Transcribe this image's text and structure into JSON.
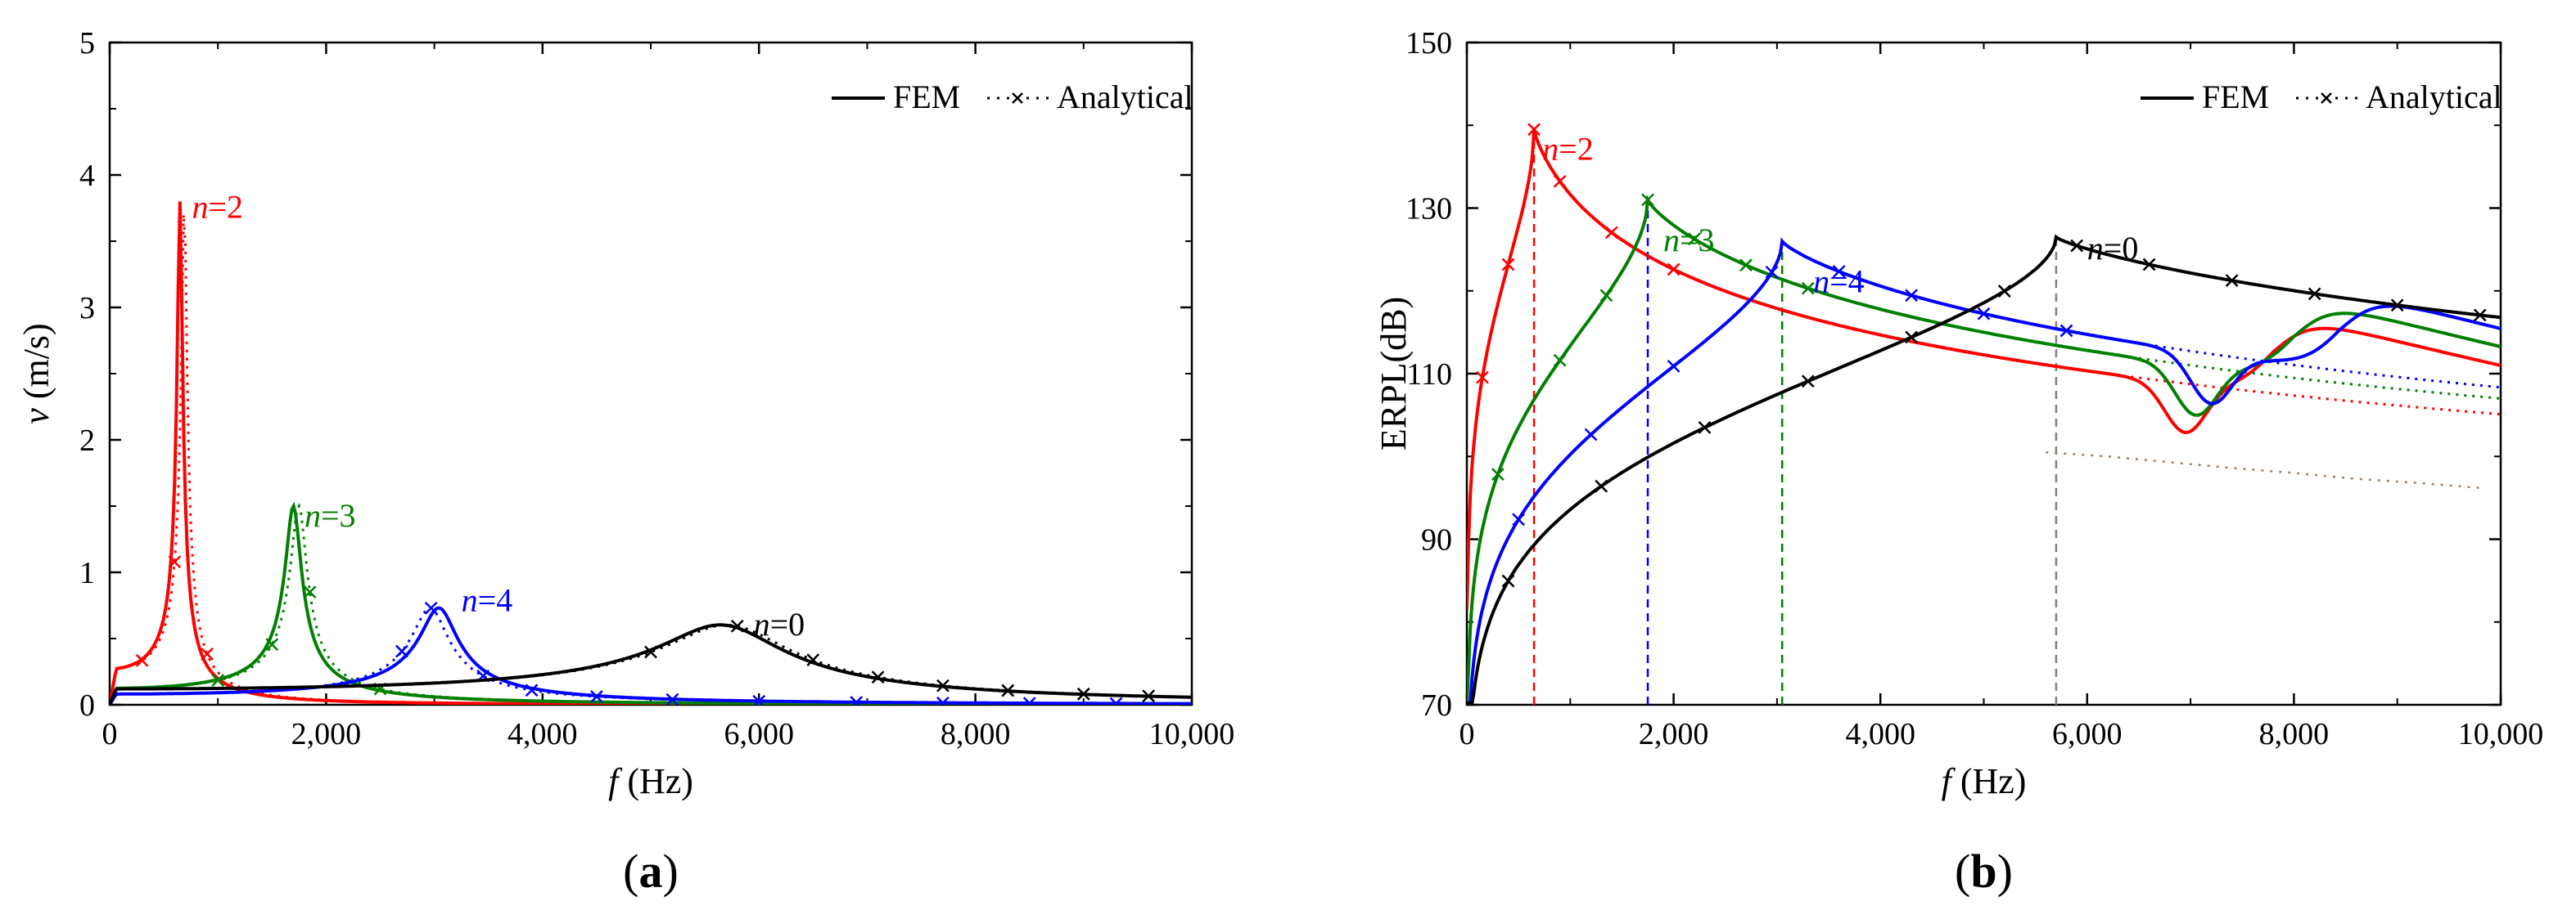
{
  "chart_data": [
    {
      "id": "a",
      "type": "line",
      "panel_label": "a",
      "xlabel_var": "f",
      "xlabel_unit": "(Hz)",
      "ylabel_var": "v",
      "ylabel_unit": " (m/s)",
      "xlim": [
        0,
        10000
      ],
      "ylim": [
        0,
        5
      ],
      "x_ticks": [
        0,
        2000,
        4000,
        6000,
        8000,
        10000
      ],
      "x_tick_labels": [
        "0",
        "2,000",
        "4,000",
        "6,000",
        "8,000",
        "10,000"
      ],
      "y_ticks": [
        0,
        1,
        2,
        3,
        4,
        5
      ],
      "y_tick_labels": [
        "0",
        "1",
        "2",
        "3",
        "4",
        "5"
      ],
      "legend": {
        "fem": "FEM",
        "analytical": "Analytical",
        "position": "top-right"
      },
      "series": [
        {
          "name": "n=2",
          "color": "#ff0000",
          "f0": 650,
          "peak": 3.8,
          "q": 14,
          "ana_shift": 40,
          "marker_x": [
            300,
            600,
            900
          ],
          "label_var": "n",
          "label_val": "=2",
          "label_at": [
            760,
            3.75
          ]
        },
        {
          "name": "n=3",
          "color": "#008000",
          "f0": 1700,
          "peak": 1.5,
          "q": 12,
          "ana_shift": 50,
          "marker_x": [
            1000,
            1500,
            1850,
            2500
          ],
          "label_var": "n",
          "label_val": "=3",
          "label_at": [
            1800,
            1.42
          ]
        },
        {
          "name": "n=4",
          "color": "#0000ff",
          "f0": 3050,
          "peak": 0.73,
          "q": 9,
          "ana_shift": -80,
          "marker_x": [
            2700,
            2970,
            3450,
            3900,
            4500,
            5200,
            6000,
            6900,
            7700,
            8500,
            9300
          ],
          "label_var": "n",
          "label_val": "=4",
          "label_at": [
            3250,
            0.78
          ]
        },
        {
          "name": "n=0",
          "color": "#000000",
          "f0": 5700,
          "peak": 0.6,
          "q": 5,
          "ana_shift": 60,
          "marker_x": [
            5000,
            5800,
            6500,
            7100,
            7700,
            8300,
            9000,
            9600
          ],
          "label_var": "n",
          "label_val": "=0",
          "label_at": [
            5950,
            0.6
          ]
        }
      ]
    },
    {
      "id": "b",
      "type": "line",
      "panel_label": "b",
      "xlabel_var": "f",
      "xlabel_unit": "(Hz)",
      "ylabel_var": "",
      "ylabel_unit": "ERPL(dB)",
      "xlim": [
        0,
        10000
      ],
      "ylim": [
        70,
        150
      ],
      "x_ticks": [
        0,
        2000,
        4000,
        6000,
        8000,
        10000
      ],
      "x_tick_labels": [
        "0",
        "2,000",
        "4,000",
        "6,000",
        "8,000",
        "10,000"
      ],
      "y_ticks": [
        70,
        90,
        110,
        130,
        150
      ],
      "y_tick_labels": [
        "70",
        "90",
        "110",
        "130",
        "150"
      ],
      "legend": {
        "fem": "FEM",
        "analytical": "Analytical",
        "position": "top-right"
      },
      "series": [
        {
          "name": "n=2",
          "color": "#ff0000",
          "f0": 650,
          "peak": 139.5,
          "marker_x": [
            150,
            400,
            650,
            900,
            1400,
            2000
          ],
          "label_var": "n",
          "label_val": "=2",
          "label_at": [
            730,
            137
          ]
        },
        {
          "name": "n=3",
          "color": "#008000",
          "f0": 1750,
          "peak": 131,
          "marker_x": [
            300,
            900,
            1350,
            1750,
            2200,
            2700,
            3300
          ],
          "label_var": "n",
          "label_val": "=3",
          "label_at": [
            1900,
            126
          ]
        },
        {
          "name": "n=4",
          "color": "#0000ff",
          "f0": 3050,
          "peak": 126,
          "marker_x": [
            500,
            1200,
            2000,
            2950,
            3600,
            4300,
            5000,
            5800
          ],
          "label_var": "n",
          "label_val": "=4",
          "label_at": [
            3350,
            121
          ]
        },
        {
          "name": "n=0",
          "color": "#000000",
          "f0": 5700,
          "peak": 126.5,
          "marker_x": [
            400,
            1300,
            2300,
            3300,
            4300,
            5200,
            5900,
            6600,
            7400,
            8200,
            9000,
            9800
          ],
          "label_var": "n",
          "label_val": "=0",
          "label_at": [
            6000,
            125
          ]
        }
      ],
      "dashed_markers": [
        {
          "x": 650,
          "color": "#ff0000"
        },
        {
          "x": 1750,
          "color": "#0000ff"
        },
        {
          "x": 3050,
          "color": "#008000"
        },
        {
          "x": 5700,
          "color": "#808080"
        }
      ],
      "grey_analytical_tail": [
        {
          "x": 5600,
          "y": 100.5
        },
        {
          "x": 6200,
          "y": 100
        },
        {
          "x": 6800,
          "y": 99.3
        },
        {
          "x": 7400,
          "y": 98.6
        },
        {
          "x": 8000,
          "y": 98
        },
        {
          "x": 8600,
          "y": 97.3
        },
        {
          "x": 9200,
          "y": 96.8
        },
        {
          "x": 9800,
          "y": 96.2
        }
      ]
    }
  ]
}
